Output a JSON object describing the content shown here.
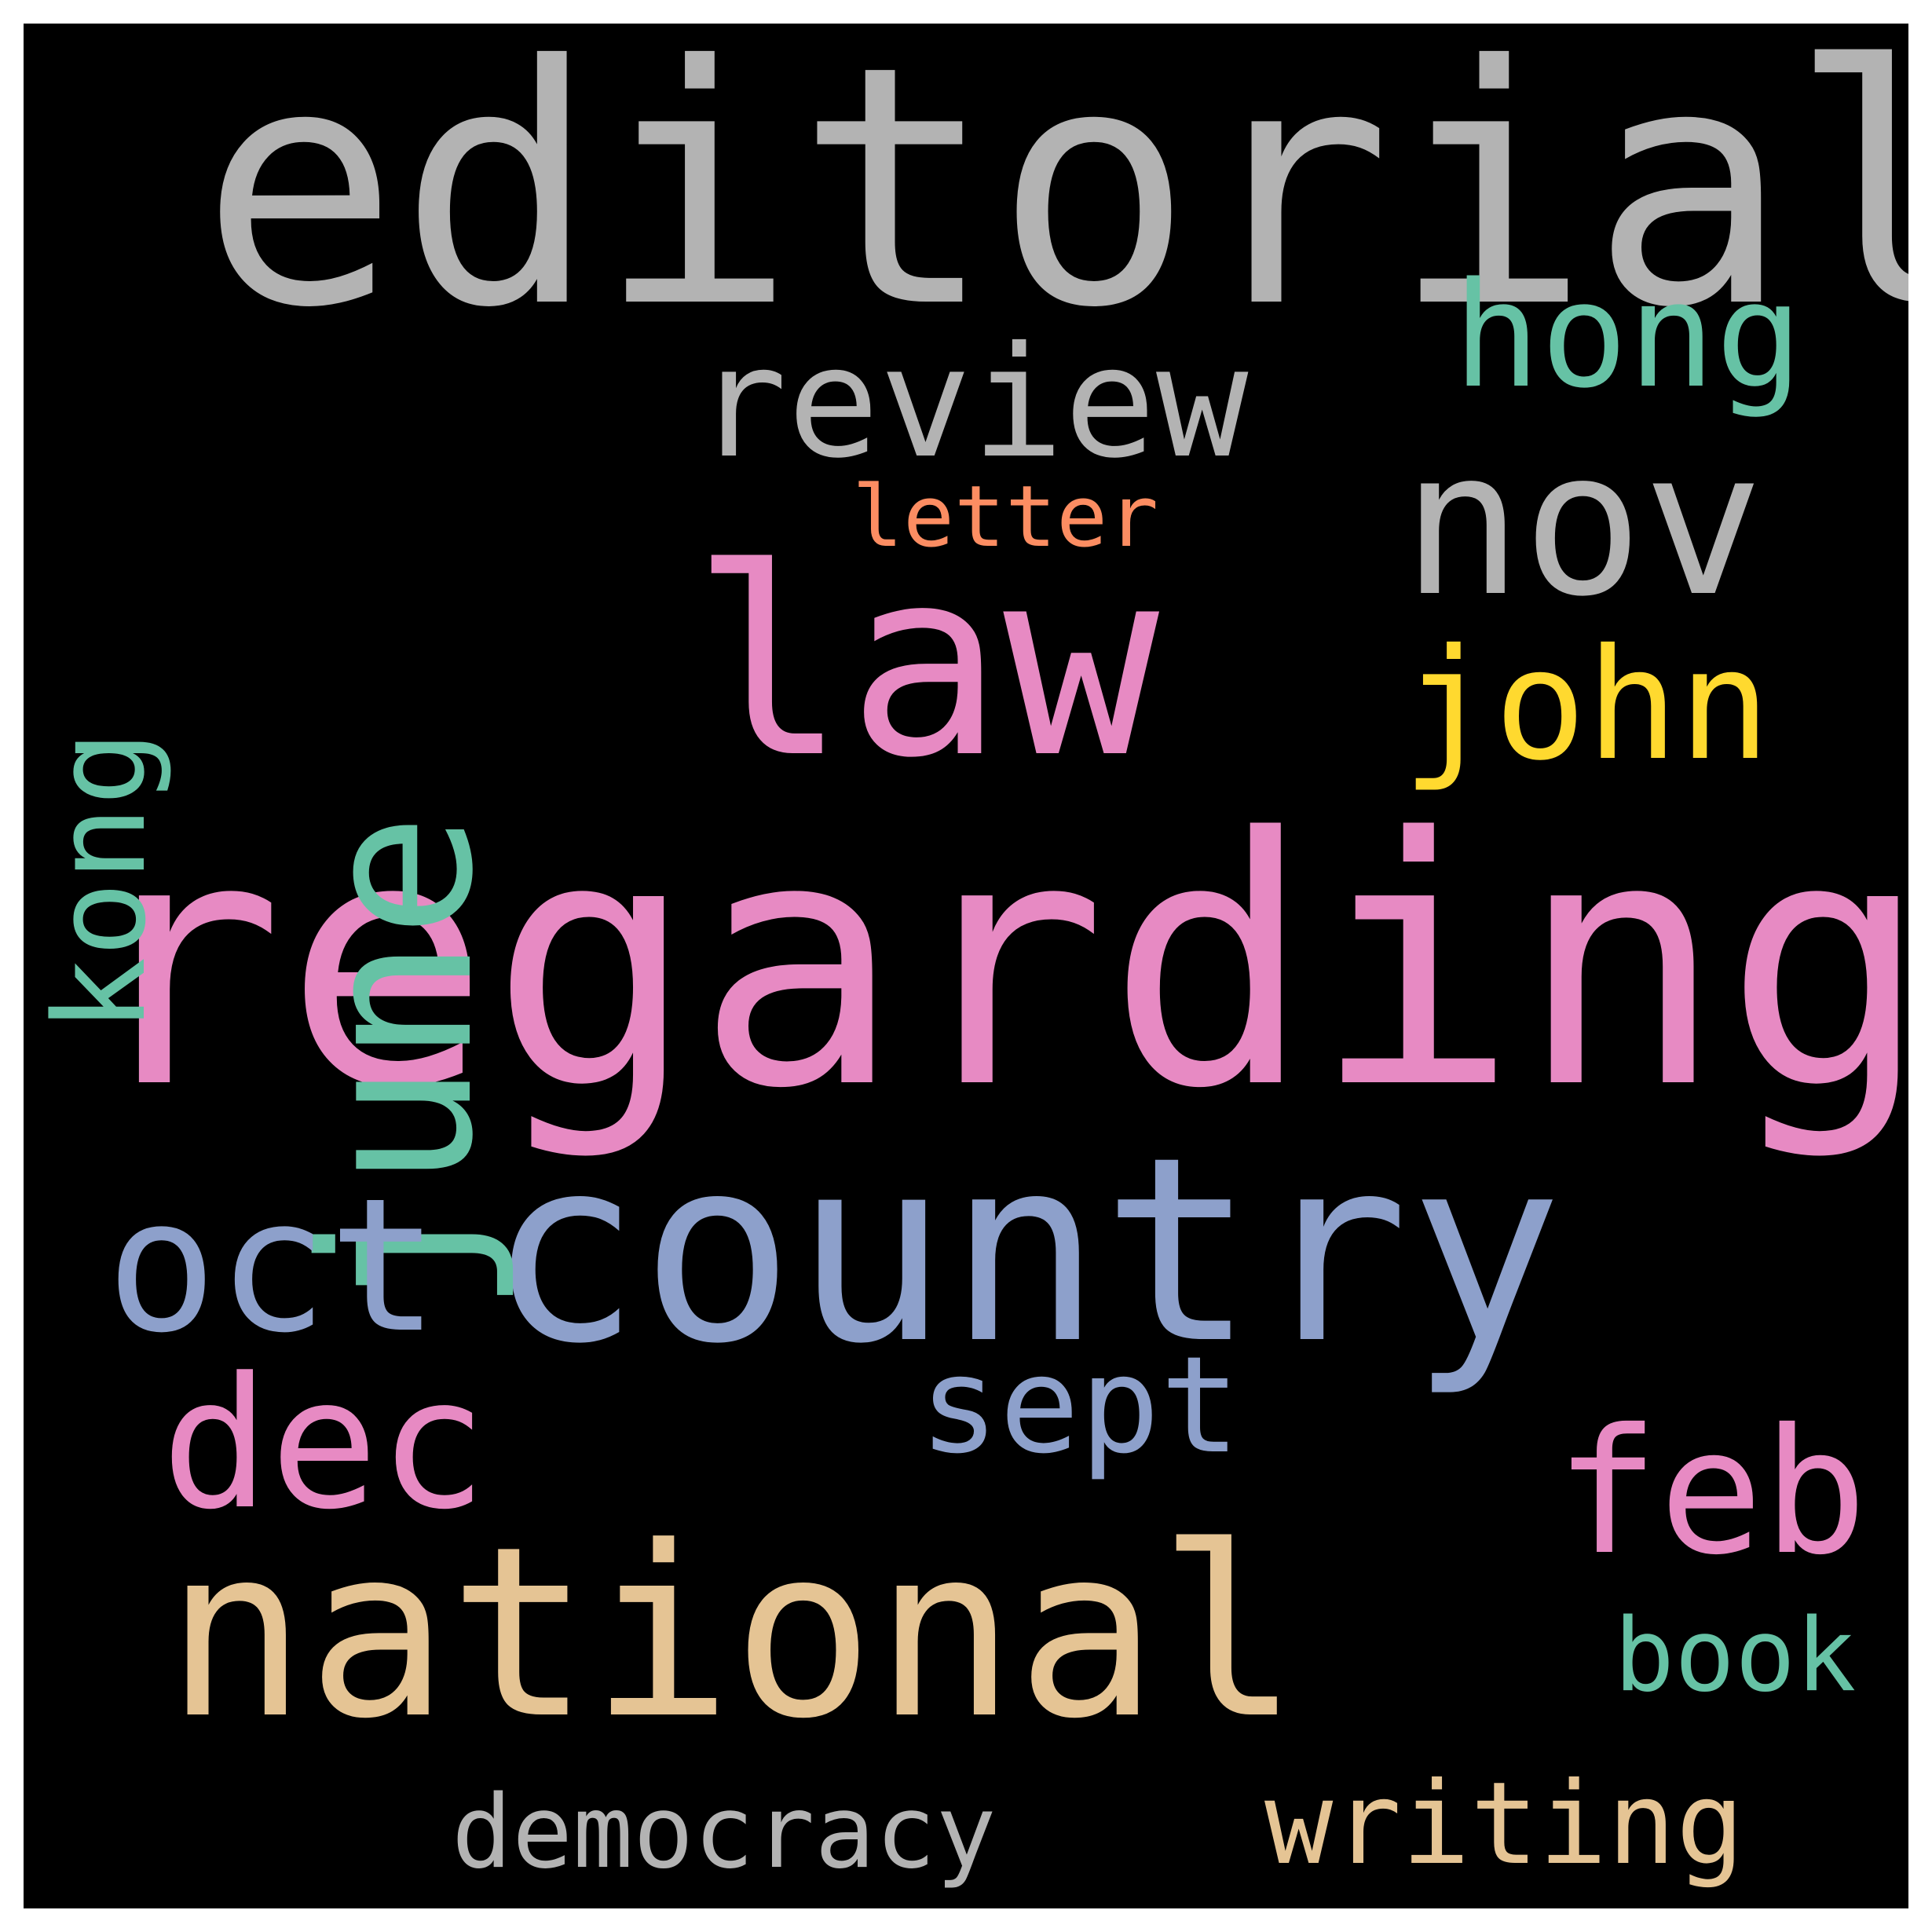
{
  "words": {
    "editorial": {
      "text": "editorial",
      "color": "#b3b3b3"
    },
    "regarding": {
      "text": "regarding",
      "color": "#e78ac3"
    },
    "country": {
      "text": "country",
      "color": "#8da0cb"
    },
    "national": {
      "text": "national",
      "color": "#e5c494"
    },
    "law": {
      "text": "law",
      "color": "#e78ac3"
    },
    "june": {
      "text": "june",
      "color": "#66c2a5"
    },
    "nov": {
      "text": "nov",
      "color": "#b3b3b3"
    },
    "review": {
      "text": "review",
      "color": "#b3b3b3"
    },
    "hong": {
      "text": "hong",
      "color": "#66c2a5"
    },
    "john": {
      "text": "john",
      "color": "#ffd92f"
    },
    "kong": {
      "text": "kong",
      "color": "#66c2a5"
    },
    "oct": {
      "text": "oct",
      "color": "#8da0cb"
    },
    "dec": {
      "text": "dec",
      "color": "#e78ac3"
    },
    "sept": {
      "text": "sept",
      "color": "#8da0cb"
    },
    "feb": {
      "text": "feb",
      "color": "#e78ac3"
    },
    "book": {
      "text": "book",
      "color": "#66c2a5"
    },
    "democracy": {
      "text": "democracy",
      "color": "#b3b3b3"
    },
    "writing": {
      "text": "writing",
      "color": "#e5c494"
    },
    "letter": {
      "text": "letter",
      "color": "#fc8d62"
    }
  }
}
